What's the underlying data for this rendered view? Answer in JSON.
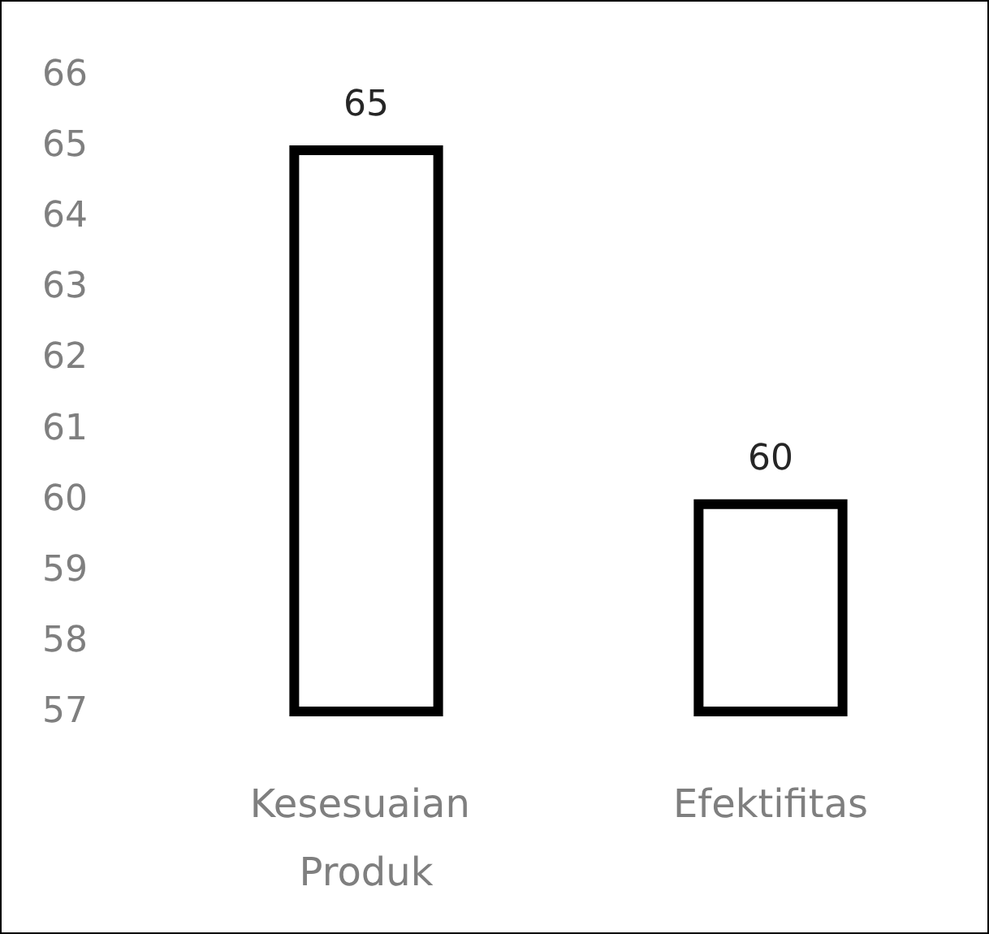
{
  "chart_data": {
    "type": "bar",
    "categories": [
      "Kesesuaian Produk",
      "Efektifitas"
    ],
    "series": [
      {
        "color": "#000000",
        "values": [
          65,
          60
        ]
      }
    ],
    "ylim": [
      57,
      66
    ],
    "yticks": [
      57,
      58,
      59,
      60,
      61,
      62,
      63,
      64,
      65,
      66
    ],
    "data_labels": true,
    "grid": false,
    "legend": false
  }
}
